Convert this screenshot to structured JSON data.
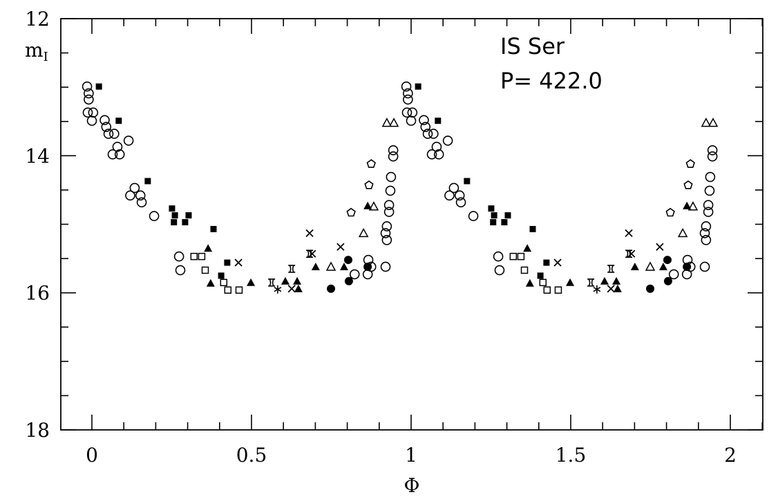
{
  "chart_data": {
    "type": "scatter",
    "title_lines": [
      "IS Ser",
      "P= 422.0"
    ],
    "xlabel": "Φ",
    "ylabel": "m",
    "ylabel_subscript": "I",
    "xlim": [
      -0.1,
      2.1
    ],
    "ylim": [
      12,
      18
    ],
    "y_inverted": true,
    "xticks": [
      0,
      0.5,
      1,
      1.5,
      2
    ],
    "xtick_labels": [
      "0",
      "0.5",
      "1",
      "1.5",
      "2"
    ],
    "yticks": [
      12,
      14,
      16,
      18
    ],
    "ytick_labels": [
      "12",
      "14",
      "16",
      "18"
    ],
    "grid": false,
    "phase_repeated_twice": true,
    "series": [
      {
        "name": "open-circle",
        "marker": "circle-open",
        "points": [
          [
            -0.015,
            12.99
          ],
          [
            -0.01,
            13.09
          ],
          [
            -0.01,
            13.18
          ],
          [
            -0.013,
            13.37
          ],
          [
            0.004,
            13.37
          ],
          [
            0.0,
            13.49
          ],
          [
            0.04,
            13.48
          ],
          [
            0.045,
            13.58
          ],
          [
            0.052,
            13.68
          ],
          [
            0.07,
            13.68
          ],
          [
            0.115,
            13.78
          ],
          [
            0.08,
            13.87
          ],
          [
            0.065,
            13.98
          ],
          [
            0.087,
            13.98
          ],
          [
            0.134,
            14.47
          ],
          [
            0.12,
            14.58
          ],
          [
            0.152,
            14.58
          ],
          [
            0.156,
            14.68
          ],
          [
            0.195,
            14.88
          ],
          [
            0.273,
            15.47
          ],
          [
            0.277,
            15.67
          ],
          [
            0.944,
            13.92
          ],
          [
            0.944,
            14.01
          ],
          [
            0.937,
            14.31
          ],
          [
            0.935,
            14.51
          ],
          [
            0.931,
            14.72
          ],
          [
            0.931,
            14.82
          ],
          [
            0.924,
            15.03
          ],
          [
            0.92,
            15.13
          ],
          [
            0.924,
            15.23
          ],
          [
            0.92,
            15.62
          ],
          [
            0.866,
            15.52
          ],
          [
            0.875,
            15.62
          ],
          [
            0.864,
            15.73
          ],
          [
            0.823,
            15.73
          ]
        ]
      },
      {
        "name": "filled-square",
        "marker": "square-filled",
        "points": [
          [
            0.022,
            12.99
          ],
          [
            0.084,
            13.49
          ],
          [
            0.175,
            14.37
          ],
          [
            0.251,
            14.77
          ],
          [
            0.26,
            14.87
          ],
          [
            0.303,
            14.87
          ],
          [
            0.257,
            14.97
          ],
          [
            0.292,
            14.97
          ],
          [
            0.381,
            15.07
          ],
          [
            0.424,
            15.56
          ],
          [
            0.405,
            15.75
          ]
        ]
      },
      {
        "name": "open-square",
        "marker": "square-open",
        "points": [
          [
            0.32,
            15.47
          ],
          [
            0.344,
            15.47
          ],
          [
            0.355,
            15.67
          ],
          [
            0.413,
            15.85
          ],
          [
            0.426,
            15.96
          ],
          [
            0.461,
            15.96
          ]
        ]
      },
      {
        "name": "filled-triangle",
        "marker": "triangle-filled",
        "points": [
          [
            0.364,
            15.35
          ],
          [
            0.372,
            15.86
          ],
          [
            0.498,
            15.85
          ],
          [
            0.606,
            15.83
          ],
          [
            0.643,
            15.83
          ],
          [
            0.647,
            15.94
          ],
          [
            0.701,
            15.62
          ],
          [
            0.864,
            14.73
          ],
          [
            0.79,
            15.62
          ]
        ]
      },
      {
        "name": "open-triangle",
        "marker": "triangle-open",
        "points": [
          [
            0.924,
            13.52
          ],
          [
            0.946,
            13.52
          ],
          [
            0.883,
            14.74
          ],
          [
            0.851,
            15.13
          ],
          [
            0.749,
            15.62
          ]
        ]
      },
      {
        "name": "cross",
        "marker": "x",
        "points": [
          [
            0.459,
            15.56
          ],
          [
            0.682,
            15.13
          ],
          [
            0.626,
            15.94
          ],
          [
            0.779,
            15.33
          ],
          [
            0.69,
            15.43
          ]
        ]
      },
      {
        "name": "bowtie",
        "marker": "bowtie",
        "points": [
          [
            0.682,
            15.43
          ],
          [
            0.626,
            15.65
          ],
          [
            0.563,
            15.85
          ]
        ]
      },
      {
        "name": "asterisk",
        "marker": "asterisk",
        "points": [
          [
            0.582,
            15.95
          ]
        ]
      },
      {
        "name": "filled-circle",
        "marker": "circle-filled",
        "points": [
          [
            0.803,
            15.52
          ],
          [
            0.864,
            15.62
          ],
          [
            0.805,
            15.83
          ],
          [
            0.749,
            15.94
          ]
        ]
      },
      {
        "name": "open-pentagon",
        "marker": "pentagon-open",
        "points": [
          [
            0.875,
            14.12
          ],
          [
            0.868,
            14.43
          ],
          [
            0.812,
            14.83
          ]
        ]
      }
    ]
  }
}
